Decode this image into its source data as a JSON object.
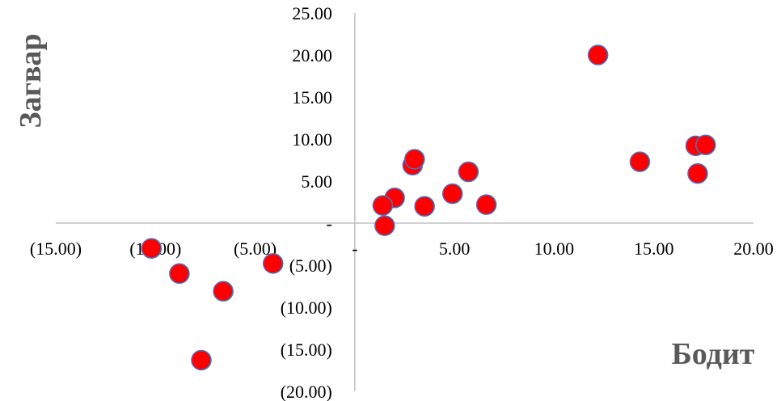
{
  "chart_data": {
    "type": "scatter",
    "title": "",
    "xlabel": "Бодит",
    "ylabel": "Загвар",
    "xlim": [
      -15,
      20
    ],
    "ylim": [
      -20,
      25
    ],
    "grid": false,
    "legend": "none",
    "x_ticks": [
      "(15.00)",
      "(10.00)",
      "(5.00)",
      "-",
      "5.00",
      "10.00",
      "15.00",
      "20.00"
    ],
    "x_tick_values": [
      -15,
      -10,
      -5,
      0,
      5,
      10,
      15,
      20
    ],
    "y_ticks": [
      "25.00",
      "20.00",
      "15.00",
      "10.00",
      "5.00",
      "-",
      "(5.00)",
      "(10.00)",
      "(15.00)",
      "(20.00)"
    ],
    "y_tick_values": [
      25,
      20,
      15,
      10,
      5,
      0,
      -5,
      -10,
      -15,
      -20
    ],
    "marker_fill": "#ff0000",
    "marker_edge": "#4472c4",
    "axis_color": "#bfbfbf",
    "series": [
      {
        "points": [
          [
            12.2,
            20.0
          ],
          [
            14.3,
            7.3
          ],
          [
            17.1,
            9.2
          ],
          [
            17.6,
            9.3
          ],
          [
            17.2,
            5.9
          ],
          [
            2.9,
            6.9
          ],
          [
            3.0,
            7.6
          ],
          [
            5.7,
            6.1
          ],
          [
            4.9,
            3.5
          ],
          [
            6.6,
            2.2
          ],
          [
            3.5,
            2.0
          ],
          [
            2.0,
            3.0
          ],
          [
            1.4,
            2.1
          ],
          [
            1.5,
            -0.3
          ],
          [
            -10.2,
            -3.0
          ],
          [
            -8.8,
            -6.0
          ],
          [
            -6.6,
            -8.1
          ],
          [
            -4.1,
            -4.8
          ],
          [
            -7.7,
            -16.3
          ]
        ]
      }
    ]
  }
}
